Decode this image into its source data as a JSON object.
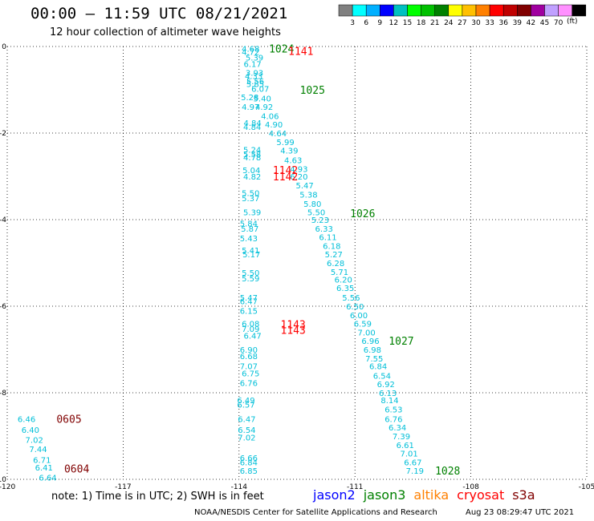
{
  "header": {
    "title": "00:00 – 11:59 UTC 08/21/2021",
    "subtitle": "12 hour collection of altimeter wave heights"
  },
  "colorbar": {
    "colors": [
      "#808080",
      "#00ffff",
      "#00b0ff",
      "#0000ff",
      "#00c0c0",
      "#00ff00",
      "#00c000",
      "#008000",
      "#ffff00",
      "#ffc000",
      "#ff8000",
      "#ff0000",
      "#c00000",
      "#800000",
      "#a000a0",
      "#c0a0ff",
      "#ff90ff",
      "#000000"
    ],
    "labels": [
      "3",
      "6",
      "9",
      "12",
      "15",
      "18",
      "21",
      "24",
      "27",
      "30",
      "33",
      "36",
      "39",
      "42",
      "45",
      "70"
    ],
    "unit": "(ft)"
  },
  "footer": {
    "note": "note: 1) Time is in UTC; 2) SWH is in feet",
    "satellites": [
      {
        "name": "jason2",
        "color": "#0000ff"
      },
      {
        "name": "jason3",
        "color": "#008000"
      },
      {
        "name": "altika",
        "color": "#ff8000"
      },
      {
        "name": "cryosat",
        "color": "#ff0000"
      },
      {
        "name": "s3a",
        "color": "#800000"
      }
    ],
    "credit": "NOAA/NESDIS Center for Satellite Applications and Research",
    "timestamp": "Aug 23 08:29:47 UTC 2021"
  },
  "chart_data": {
    "type": "scatter",
    "xlim": [
      -120,
      -105
    ],
    "ylim": [
      -10,
      0
    ],
    "x_ticks": [
      -120,
      -117,
      -114,
      -111,
      -108,
      -105
    ],
    "y_ticks": [
      0,
      -2,
      -4,
      -6,
      -8,
      -10
    ],
    "grid": true,
    "point_color": "#00bfd8",
    "series": [
      {
        "name": "jason3",
        "points": [
          [
            -113.7,
            -0.05,
            "4.68"
          ],
          [
            -113.7,
            -0.12,
            "4.72"
          ],
          [
            -113.6,
            -0.25,
            "5.39"
          ],
          [
            -113.65,
            -0.4,
            "6.17"
          ],
          [
            -113.6,
            -0.6,
            "3.93"
          ],
          [
            -113.62,
            -0.68,
            "4.33"
          ],
          [
            -113.58,
            -0.8,
            "5.56"
          ],
          [
            -113.58,
            -0.86,
            "5.85"
          ],
          [
            -113.45,
            -0.97,
            "6.07"
          ],
          [
            -113.72,
            -1.17,
            "5.28"
          ],
          [
            -113.4,
            -1.19,
            "5.40"
          ],
          [
            -113.7,
            -1.39,
            "4.97"
          ],
          [
            -113.35,
            -1.39,
            "4.92"
          ],
          [
            -113.2,
            -1.6,
            "4.06"
          ],
          [
            -113.65,
            -1.76,
            "4.84"
          ],
          [
            -113.1,
            -1.8,
            "4.90"
          ],
          [
            -113.66,
            -1.85,
            "4.84"
          ],
          [
            -113.0,
            -2.0,
            "4.64"
          ],
          [
            -112.8,
            -2.2,
            "5.99"
          ],
          [
            -113.66,
            -2.38,
            "5.24"
          ],
          [
            -112.7,
            -2.4,
            "4.39"
          ],
          [
            -113.66,
            -2.48,
            "5.58"
          ],
          [
            -113.66,
            -2.56,
            "4.78"
          ],
          [
            -112.6,
            -2.62,
            "4.63"
          ],
          [
            -112.45,
            -2.82,
            "4.93"
          ],
          [
            -113.68,
            -2.85,
            "5.04"
          ],
          [
            -112.45,
            -3.0,
            "6.20"
          ],
          [
            -113.66,
            -3.0,
            "4.82"
          ],
          [
            -112.3,
            -3.2,
            "5.47"
          ],
          [
            -113.7,
            -3.38,
            "5.50"
          ],
          [
            -112.2,
            -3.42,
            "5.38"
          ],
          [
            -113.7,
            -3.5,
            "5.37"
          ],
          [
            -112.1,
            -3.63,
            "5.80"
          ],
          [
            -113.66,
            -3.82,
            "5.39"
          ],
          [
            -112.0,
            -3.82,
            "5.50"
          ],
          [
            -111.9,
            -4.0,
            "5.23"
          ],
          [
            -113.75,
            -4.08,
            "5.84"
          ],
          [
            -111.8,
            -4.2,
            "6.33"
          ],
          [
            -113.72,
            -4.2,
            "5.87"
          ],
          [
            -111.7,
            -4.4,
            "6.11"
          ],
          [
            -113.75,
            -4.43,
            "5.43"
          ],
          [
            -111.6,
            -4.6,
            "6.18"
          ],
          [
            -113.7,
            -4.7,
            "5.41"
          ],
          [
            -111.55,
            -4.8,
            "5.27"
          ],
          [
            -113.68,
            -4.8,
            "5.17"
          ],
          [
            -111.5,
            -5.0,
            "6.28"
          ],
          [
            -111.4,
            -5.2,
            "5.71"
          ],
          [
            -113.7,
            -5.22,
            "5.50"
          ],
          [
            -113.7,
            -5.35,
            "5.59"
          ],
          [
            -111.3,
            -5.38,
            "6.20"
          ],
          [
            -111.25,
            -5.57,
            "6.35"
          ],
          [
            -111.1,
            -5.8,
            "5.56"
          ],
          [
            -113.75,
            -5.8,
            "5.47"
          ],
          [
            -113.75,
            -5.88,
            "6.47"
          ],
          [
            -111.0,
            -6.0,
            "6.50"
          ],
          [
            -113.75,
            -6.1,
            "6.15"
          ],
          [
            -110.9,
            -6.2,
            "6.00"
          ],
          [
            -113.7,
            -6.4,
            "6.08"
          ],
          [
            -110.8,
            -6.4,
            "6.59"
          ],
          [
            -113.7,
            -6.52,
            "7.09"
          ],
          [
            -110.7,
            -6.6,
            "7.00"
          ],
          [
            -113.65,
            -6.68,
            "6.47"
          ],
          [
            -110.6,
            -6.8,
            "6.96"
          ],
          [
            -113.75,
            -7.0,
            "6.90"
          ],
          [
            -110.55,
            -7.0,
            "6.98"
          ],
          [
            -113.75,
            -7.15,
            "6.68"
          ],
          [
            -110.5,
            -7.2,
            "7.55"
          ],
          [
            -113.75,
            -7.38,
            "7.07"
          ],
          [
            -110.4,
            -7.38,
            "6.84"
          ],
          [
            -113.7,
            -7.55,
            "6.75"
          ],
          [
            -110.3,
            -7.6,
            "6.54"
          ],
          [
            -113.75,
            -7.77,
            "6.76"
          ],
          [
            -110.2,
            -7.8,
            "6.92"
          ],
          [
            -110.15,
            -8.0,
            "6.13"
          ],
          [
            -113.82,
            -8.17,
            "6.49"
          ],
          [
            -110.1,
            -8.17,
            "8.14"
          ],
          [
            -113.82,
            -8.27,
            "6.57"
          ],
          [
            -110.0,
            -8.38,
            "6.53"
          ],
          [
            -110.0,
            -8.6,
            "6.76"
          ],
          [
            -113.8,
            -8.6,
            "6.47"
          ],
          [
            -109.9,
            -8.8,
            "6.34"
          ],
          [
            -113.8,
            -8.85,
            "6.54"
          ],
          [
            -109.8,
            -9.0,
            "7.39"
          ],
          [
            -113.8,
            -9.03,
            "7.02"
          ],
          [
            -109.7,
            -9.2,
            "6.61"
          ],
          [
            -109.6,
            -9.4,
            "7.01"
          ],
          [
            -113.75,
            -9.5,
            "6.66"
          ],
          [
            -113.75,
            -9.6,
            "6.84"
          ],
          [
            -109.5,
            -9.6,
            "6.67"
          ],
          [
            -113.75,
            -9.8,
            "6.85"
          ],
          [
            -109.45,
            -9.8,
            "7.19"
          ]
        ]
      },
      {
        "name": "s3a",
        "points": [
          [
            -119.5,
            -8.6,
            "6.46"
          ],
          [
            -119.4,
            -8.85,
            "6.40"
          ],
          [
            -119.3,
            -9.08,
            "7.02"
          ],
          [
            -119.2,
            -9.3,
            "7.44"
          ],
          [
            -119.1,
            -9.55,
            "6.71"
          ],
          [
            -119.05,
            -9.72,
            "6.41"
          ],
          [
            -118.95,
            -9.95,
            "6.64"
          ]
        ]
      }
    ],
    "annotations": [
      {
        "x": -112.9,
        "y": -0.05,
        "text": "1024",
        "color": "#008000"
      },
      {
        "x": -112.4,
        "y": -0.1,
        "text": "1141",
        "color": "#ff0000"
      },
      {
        "x": -112.1,
        "y": -1.0,
        "text": "1025",
        "color": "#008000"
      },
      {
        "x": -112.8,
        "y": -2.85,
        "text": "1142",
        "color": "#ff0000"
      },
      {
        "x": -112.8,
        "y": -3.0,
        "text": "1142",
        "color": "#ff0000"
      },
      {
        "x": -110.8,
        "y": -3.85,
        "text": "1026",
        "color": "#008000"
      },
      {
        "x": -112.6,
        "y": -6.42,
        "text": "1143",
        "color": "#ff0000"
      },
      {
        "x": -112.6,
        "y": -6.55,
        "text": "1143",
        "color": "#ff0000"
      },
      {
        "x": -109.8,
        "y": -6.8,
        "text": "1027",
        "color": "#008000"
      },
      {
        "x": -118.4,
        "y": -8.6,
        "text": "0605",
        "color": "#800000"
      },
      {
        "x": -118.2,
        "y": -9.75,
        "text": "0604",
        "color": "#800000"
      },
      {
        "x": -108.6,
        "y": -9.8,
        "text": "1028",
        "color": "#008000"
      }
    ]
  }
}
